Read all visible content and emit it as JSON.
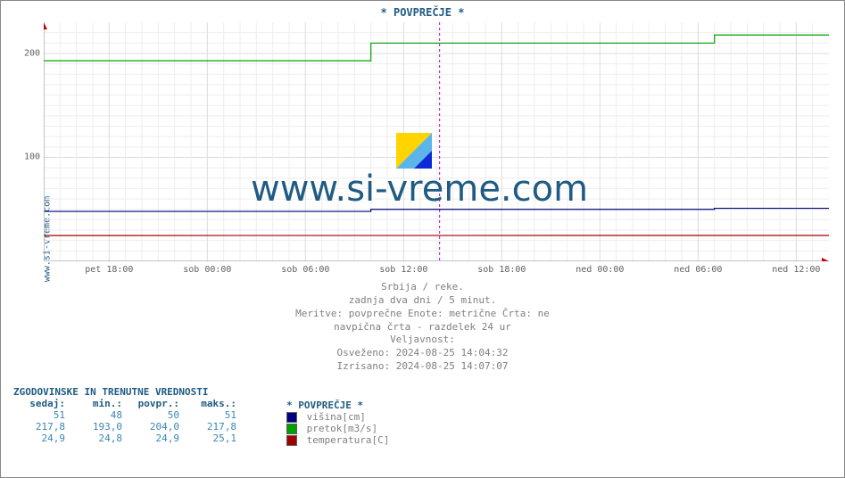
{
  "title": "* POVPREČJE *",
  "y_axis_label_left": "www.si-vreme.com",
  "watermark": {
    "text": "www.si-vreme.com",
    "fontsize": 40,
    "color": "#1f5b83",
    "logo_colors": [
      "#ffd400",
      "#5bb5e8",
      "#0b2bd6"
    ]
  },
  "chart": {
    "type": "line",
    "background_color": "#ffffff",
    "grid_color": "#dcdcdc",
    "minor_grid_color": "#eeeeee",
    "axis_color": "#888888",
    "arrow_color": "#c00000",
    "vline_color": "#c000c0",
    "xlim": [
      0,
      48
    ],
    "ylim": [
      0,
      230
    ],
    "ytick_values": [
      100,
      200
    ],
    "ytick_labels": [
      "100",
      "200"
    ],
    "xtick_values": [
      4,
      10,
      16,
      22,
      28,
      34,
      40,
      46
    ],
    "xtick_labels": [
      "pet 18:00",
      "sob 00:00",
      "sob 06:00",
      "sob 12:00",
      "sob 18:00",
      "ned 00:00",
      "ned 06:00",
      "ned 12:00"
    ],
    "vline_x": 24.2,
    "series": [
      {
        "name": "višina[cm]",
        "color": "#000080",
        "points": [
          [
            0,
            48
          ],
          [
            20,
            48
          ],
          [
            20,
            50
          ],
          [
            41,
            50
          ],
          [
            41,
            51
          ],
          [
            48,
            51
          ]
        ]
      },
      {
        "name": "pretok[m3/s]",
        "color": "#00a000",
        "points": [
          [
            0,
            193
          ],
          [
            20,
            193
          ],
          [
            20,
            210
          ],
          [
            41,
            210
          ],
          [
            41,
            217.8
          ],
          [
            48,
            217.8
          ]
        ]
      },
      {
        "name": "temperatura[C]",
        "color": "#a00000",
        "points": [
          [
            0,
            24.8
          ],
          [
            48,
            24.9
          ]
        ]
      }
    ]
  },
  "meta": {
    "l1": "Srbija / reke.",
    "l2": "zadnja dva dni / 5 minut.",
    "l3": "Meritve: povprečne  Enote: metrične  Črta: ne",
    "l4": "navpična črta - razdelek 24 ur",
    "l5": "Veljavnost:",
    "l6": "Osveženo: 2024-08-25 14:04:32",
    "l7": "Izrisano: 2024-08-25 14:07:07"
  },
  "stats": {
    "title": "ZGODOVINSKE IN TRENUTNE VREDNOSTI",
    "headers": [
      "sedaj:",
      "min.:",
      "povpr.:",
      "maks.:"
    ],
    "rows": [
      [
        "51",
        "48",
        "50",
        "51"
      ],
      [
        "217,8",
        "193,0",
        "204,0",
        "217,8"
      ],
      [
        "24,9",
        "24,8",
        "24,9",
        "25,1"
      ]
    ],
    "value_color": "#3a86b5"
  },
  "legend": {
    "title": "* POVPREČJE *",
    "items": [
      {
        "color": "#000080",
        "label": "višina[cm]"
      },
      {
        "color": "#00a000",
        "label": "pretok[m3/s]"
      },
      {
        "color": "#a00000",
        "label": "temperatura[C]"
      }
    ]
  }
}
